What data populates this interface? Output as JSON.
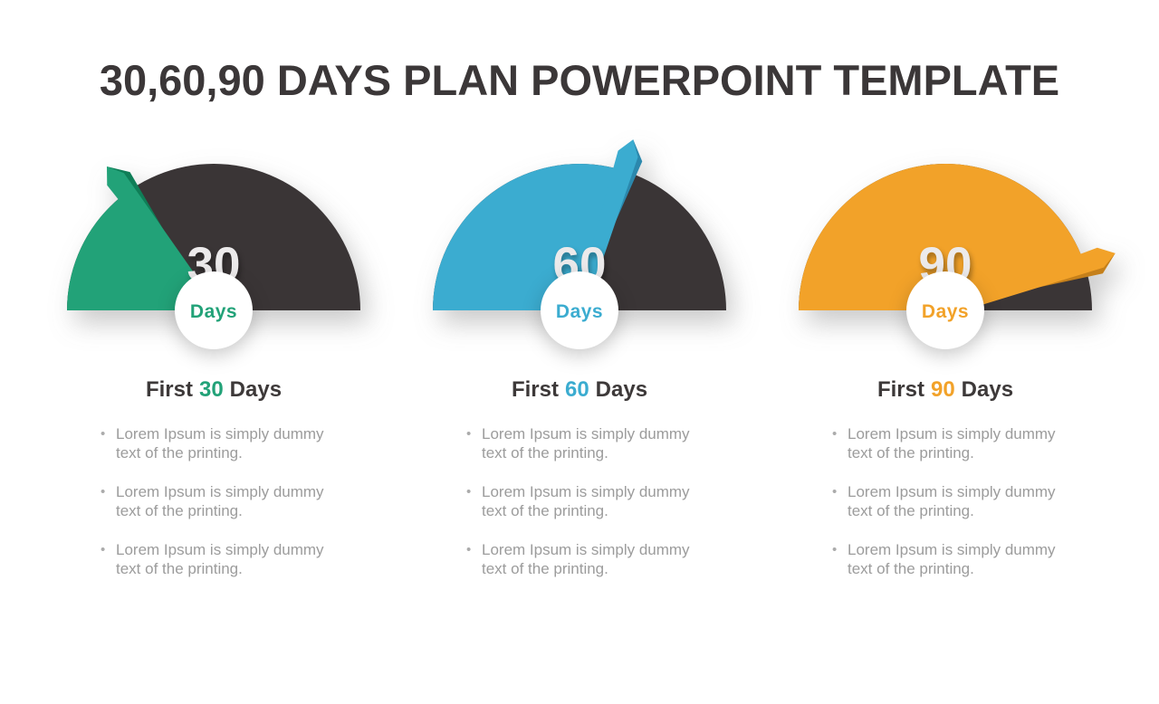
{
  "title": "30,60,90 DAYS PLAN POWERPOINT TEMPLATE",
  "colors": {
    "bg": "#ffffff",
    "title": "#3b3738",
    "track": "#3a3536",
    "number": "#eceaeb",
    "circle": "#ffffff",
    "heading": "#3d3939",
    "bullet": "#9c9c9c",
    "bulletdot": "#ababab"
  },
  "chart_data": [
    {
      "type": "gauge",
      "title": "First 30 Days",
      "value": 30,
      "range": [
        0,
        100
      ],
      "color": "#22a278"
    },
    {
      "type": "gauge",
      "title": "First 60 Days",
      "value": 60,
      "range": [
        0,
        100
      ],
      "color": "#3bacd0"
    },
    {
      "type": "gauge",
      "title": "First 90 Days",
      "value": 90,
      "range": [
        0,
        100
      ],
      "color": "#f2a229"
    }
  ],
  "sections": [
    {
      "value": 30,
      "scale_max": 100,
      "color": "#22a278",
      "color_dark": "#0f7e57",
      "number_label": "30",
      "circle_label": "Days",
      "heading_prefix": "First",
      "heading_number": "30",
      "heading_suffix": "Days",
      "bullets": [
        "Lorem Ipsum is simply dummy\ntext of the printing.",
        "Lorem Ipsum is simply dummy\ntext of the printing.",
        "Lorem Ipsum is simply dummy\ntext of the printing."
      ]
    },
    {
      "value": 60,
      "scale_max": 100,
      "color": "#3bacd0",
      "color_dark": "#2b88ad",
      "number_label": "60",
      "circle_label": "Days",
      "heading_prefix": "First",
      "heading_number": "60",
      "heading_suffix": "Days",
      "bullets": [
        "Lorem Ipsum is simply dummy\ntext of the printing.",
        "Lorem Ipsum is simply dummy\ntext of the printing.",
        "Lorem Ipsum is simply dummy\ntext of the printing."
      ]
    },
    {
      "value": 90,
      "scale_max": 100,
      "color": "#f2a229",
      "color_dark": "#c5801b",
      "number_label": "90",
      "circle_label": "Days",
      "heading_prefix": "First",
      "heading_number": "90",
      "heading_suffix": "Days",
      "bullets": [
        "Lorem Ipsum is simply dummy\ntext of the printing.",
        "Lorem Ipsum is simply dummy\ntext of the printing.",
        "Lorem Ipsum is simply dummy\ntext of the printing."
      ]
    }
  ]
}
